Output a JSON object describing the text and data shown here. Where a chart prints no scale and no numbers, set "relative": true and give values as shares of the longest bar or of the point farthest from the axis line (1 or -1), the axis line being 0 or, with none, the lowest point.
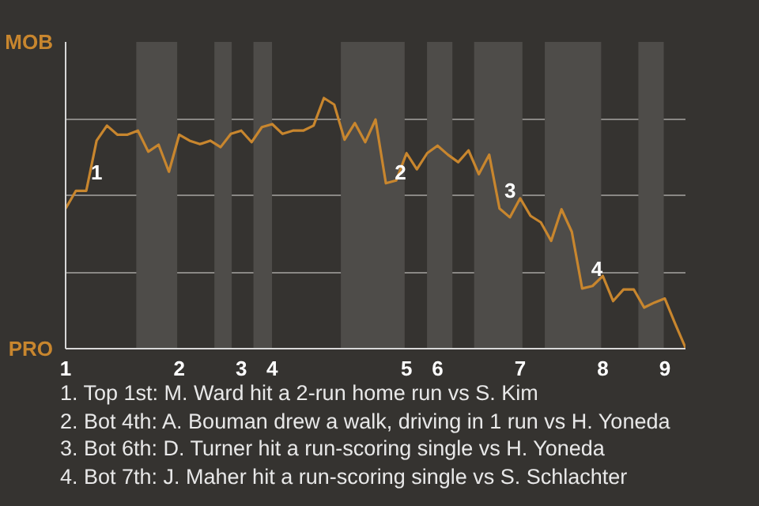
{
  "chart_data": {
    "type": "line",
    "relative": true,
    "categories": [
      "1",
      null,
      null,
      null,
      null,
      null,
      null,
      null,
      null,
      null,
      null,
      "2",
      null,
      null,
      null,
      null,
      null,
      "3",
      null,
      null,
      "4",
      null,
      null,
      null,
      null,
      null,
      null,
      null,
      null,
      null,
      null,
      null,
      null,
      "5",
      null,
      null,
      "6",
      null,
      null,
      null,
      null,
      null,
      null,
      null,
      "7",
      null,
      null,
      null,
      null,
      null,
      null,
      null,
      "8",
      null,
      null,
      null,
      null,
      null,
      "9",
      null,
      null
    ],
    "series": [
      {
        "color": "#c8862e",
        "values": [
          0.559,
          0.63,
          0.63,
          0.83,
          0.89,
          0.854,
          0.854,
          0.87,
          0.786,
          0.814,
          0.706,
          0.854,
          0.83,
          0.816,
          0.83,
          0.804,
          0.857,
          0.87,
          0.824,
          0.884,
          0.896,
          0.857,
          0.87,
          0.87,
          0.89,
          1,
          0.974,
          0.834,
          0.9,
          0.824,
          0.914,
          0.66,
          0.671,
          0.78,
          0.716,
          0.78,
          0.81,
          0.774,
          0.744,
          0.791,
          0.696,
          0.774,
          0.559,
          0.524,
          0.6,
          0.53,
          0.504,
          0.43,
          0.556,
          0.466,
          0.24,
          0.25,
          0.29,
          0.19,
          0.236,
          0.236,
          0.164,
          0.184,
          0.2,
          0.1,
          0.004
        ]
      }
    ],
    "grid": "y",
    "line_style": "solid",
    "annotations": [
      "MOB",
      "PRO",
      "1",
      "2",
      "3",
      "4",
      "1. Top 1st: M. Ward hit a 2-run home run vs S. Kim",
      "2. Bot 4th: A. Bouman drew a walk, driving in 1 run vs H. Yoneda",
      "3. Bot 6th: D. Turner hit a run-scoring single vs H. Yoneda",
      "4. Bot 7th: J. Maher hit a run-scoring single vs S. Schlachter"
    ]
  }
}
